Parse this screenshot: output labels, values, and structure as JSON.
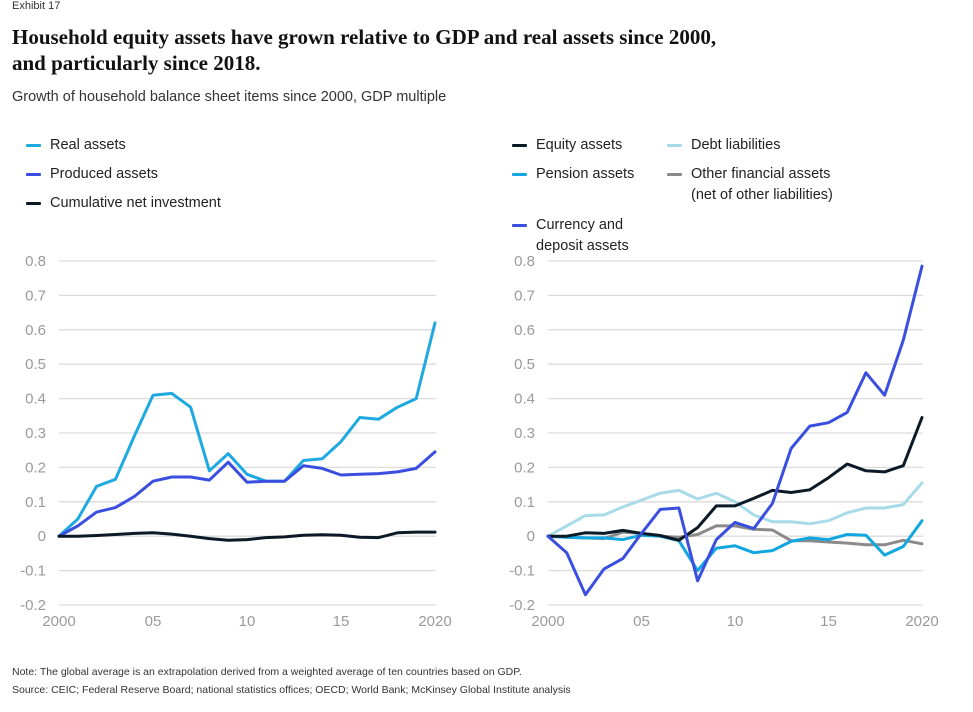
{
  "exhibit_label": "Exhibit 17",
  "title_line1": "Household equity assets have grown relative to GDP and real assets since 2000,",
  "title_line2": "and particularly since 2018.",
  "subtitle": "Growth of household balance sheet items since 2000, GDP multiple",
  "note": "Note:  The global average is an extrapolation derived from a weighted average of ten countries based on GDP.",
  "source": "Source: CEIC; Federal Reserve Board; national statistics offices; OECD; World Bank; McKinsey Global Institute analysis",
  "chart_data": [
    {
      "type": "line",
      "title": "",
      "xlabel": "",
      "ylabel": "",
      "x": [
        2000,
        2001,
        2002,
        2003,
        2004,
        2005,
        2006,
        2007,
        2008,
        2009,
        2010,
        2011,
        2012,
        2013,
        2014,
        2015,
        2016,
        2017,
        2018,
        2019,
        2020
      ],
      "xtick_labels": [
        "2000",
        "05",
        "10",
        "15",
        "2020"
      ],
      "xtick_values": [
        2000,
        2005,
        2010,
        2015,
        2020
      ],
      "ylim": [
        -0.2,
        0.8
      ],
      "ytick_labels": [
        "0.8",
        "0.7",
        "0.6",
        "0.5",
        "0.4",
        "0.3",
        "0.2",
        "0.1",
        "0",
        "-0.1",
        "-0.2"
      ],
      "ytick_values": [
        0.8,
        0.7,
        0.6,
        0.5,
        0.4,
        0.3,
        0.2,
        0.1,
        0,
        -0.1,
        -0.2
      ],
      "grid": true,
      "legend_position": "top-left",
      "series": [
        {
          "name": "Real assets",
          "color": "#1fa9e1",
          "values": [
            0,
            0.05,
            0.145,
            0.165,
            0.29,
            0.41,
            0.415,
            0.375,
            0.19,
            0.24,
            0.18,
            0.16,
            0.16,
            0.22,
            0.225,
            0.275,
            0.345,
            0.34,
            0.375,
            0.4,
            0.62
          ]
        },
        {
          "name": "Produced assets",
          "color": "#3a4fe0",
          "values": [
            0,
            0.03,
            0.07,
            0.083,
            0.115,
            0.16,
            0.172,
            0.172,
            0.163,
            0.215,
            0.157,
            0.16,
            0.16,
            0.205,
            0.197,
            0.178,
            0.18,
            0.182,
            0.187,
            0.197,
            0.245
          ]
        },
        {
          "name": "Cumulative net investment",
          "color": "#0b1a26",
          "values": [
            0,
            0,
            0.002,
            0.005,
            0.008,
            0.01,
            0.006,
            0,
            -0.007,
            -0.012,
            -0.01,
            -0.004,
            -0.002,
            0.003,
            0.004,
            0.003,
            -0.003,
            -0.004,
            0.01,
            0.012,
            0.012
          ]
        }
      ]
    },
    {
      "type": "line",
      "title": "",
      "xlabel": "",
      "ylabel": "",
      "x": [
        2000,
        2001,
        2002,
        2003,
        2004,
        2005,
        2006,
        2007,
        2008,
        2009,
        2010,
        2011,
        2012,
        2013,
        2014,
        2015,
        2016,
        2017,
        2018,
        2019,
        2020
      ],
      "xtick_labels": [
        "2000",
        "05",
        "10",
        "15",
        "2020"
      ],
      "xtick_values": [
        2000,
        2005,
        2010,
        2015,
        2020
      ],
      "ylim": [
        -0.2,
        0.8
      ],
      "ytick_labels": [
        "0.8",
        "0.7",
        "0.6",
        "0.5",
        "0.4",
        "0.3",
        "0.2",
        "0.1",
        "0",
        "-0.1",
        "-0.2"
      ],
      "ytick_values": [
        0.8,
        0.7,
        0.6,
        0.5,
        0.4,
        0.3,
        0.2,
        0.1,
        0,
        -0.1,
        -0.2
      ],
      "grid": true,
      "legend_position": "top",
      "series": [
        {
          "name": "Debt liabilities",
          "color": "#a8dbe8",
          "values": [
            0,
            0.03,
            0.06,
            0.062,
            0.085,
            0.105,
            0.125,
            0.133,
            0.108,
            0.125,
            0.1,
            0.062,
            0.042,
            0.042,
            0.036,
            0.045,
            0.068,
            0.082,
            0.082,
            0.092,
            0.155
          ]
        },
        {
          "name": "Other financial assets (net of other liabilities)",
          "color": "#8a8a8a",
          "values": [
            0,
            -0.003,
            -0.005,
            -0.007,
            0.012,
            0.008,
            0,
            -0.003,
            0.005,
            0.03,
            0.03,
            0.02,
            0.018,
            -0.013,
            -0.013,
            -0.017,
            -0.02,
            -0.025,
            -0.025,
            -0.012,
            -0.022
          ]
        },
        {
          "name": "Pension assets",
          "color": "#12a7e0",
          "values": [
            0,
            -0.003,
            -0.005,
            -0.005,
            -0.01,
            0.003,
            0,
            -0.013,
            -0.1,
            -0.035,
            -0.028,
            -0.048,
            -0.042,
            -0.015,
            -0.005,
            -0.01,
            0.005,
            0.003,
            -0.055,
            -0.03,
            0.045
          ]
        },
        {
          "name": "Equity assets",
          "color": "#0b1a26",
          "values": [
            0,
            0,
            0.01,
            0.008,
            0.017,
            0.008,
            0.002,
            -0.012,
            0.025,
            0.088,
            0.088,
            0.11,
            0.133,
            0.127,
            0.135,
            0.17,
            0.21,
            0.19,
            0.187,
            0.205,
            0.345
          ]
        },
        {
          "name": "Currency and deposit assets",
          "color": "#3a4fe0",
          "values": [
            0,
            -0.048,
            -0.17,
            -0.095,
            -0.065,
            0.008,
            0.078,
            0.082,
            -0.13,
            -0.01,
            0.04,
            0.022,
            0.095,
            0.255,
            0.32,
            0.33,
            0.36,
            0.475,
            0.41,
            0.57,
            0.785
          ]
        }
      ]
    }
  ],
  "legends": {
    "left": [
      {
        "label": "Real assets",
        "color": "#1fa9e1"
      },
      {
        "label": "Produced assets",
        "color": "#3a4fe0"
      },
      {
        "label": "Cumulative net investment",
        "color": "#0b1a26"
      }
    ],
    "right": [
      {
        "label": "Equity assets",
        "color": "#0b1a26"
      },
      {
        "label": "Debt liabilities",
        "color": "#a8dbe8"
      },
      {
        "label": "Pension assets",
        "color": "#12a7e0"
      },
      {
        "label": "Other financial assets",
        "label2": "(net of other liabilities)",
        "color": "#8a8a8a"
      },
      {
        "label": "Currency and",
        "label2": "deposit assets",
        "color": "#3a4fe0"
      }
    ]
  }
}
